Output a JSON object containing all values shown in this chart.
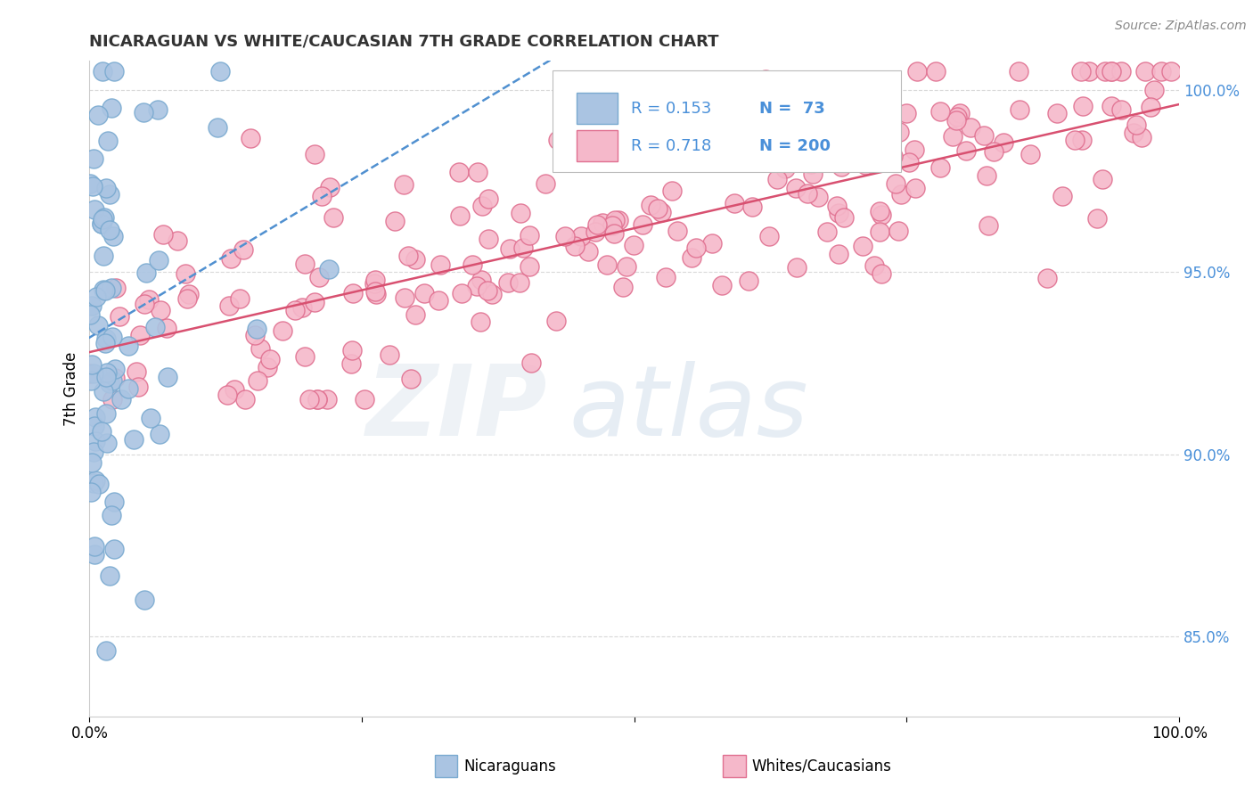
{
  "title": "NICARAGUAN VS WHITE/CAUCASIAN 7TH GRADE CORRELATION CHART",
  "source": "Source: ZipAtlas.com",
  "ylabel": "7th Grade",
  "ytick_labels": [
    "100.0%",
    "95.0%",
    "90.0%",
    "85.0%"
  ],
  "ytick_values": [
    1.0,
    0.95,
    0.9,
    0.85
  ],
  "xlim": [
    0.0,
    1.0
  ],
  "ylim": [
    0.828,
    1.008
  ],
  "legend_blue_R": "R = 0.153",
  "legend_blue_N": "N =  73",
  "legend_pink_R": "R = 0.718",
  "legend_pink_N": "N = 200",
  "legend_label1": "Nicaraguans",
  "legend_label2": "Whites/Caucasians",
  "blue_color": "#aac4e2",
  "blue_edge": "#7aaad0",
  "blue_line_color": "#5090d0",
  "pink_color": "#f5b8ca",
  "pink_edge": "#e07090",
  "pink_line_color": "#d85070",
  "blue_R": 0.153,
  "pink_R": 0.718,
  "blue_N": 73,
  "pink_N": 200,
  "blue_intercept": 0.932,
  "blue_slope": 0.18,
  "pink_intercept": 0.928,
  "pink_slope": 0.068
}
